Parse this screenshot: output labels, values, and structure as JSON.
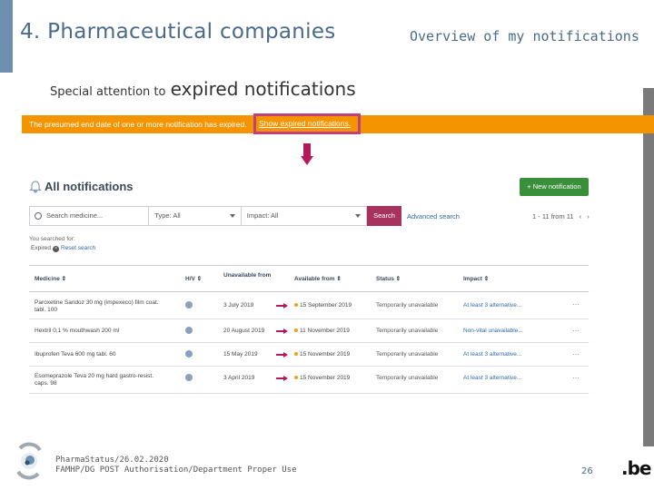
{
  "slide": {
    "title": "4. Pharmaceutical companies",
    "subtitle": "Overview of my notifications",
    "attention_small": "Special attention to",
    "attention_big": "expired notifications"
  },
  "banner": {
    "text": "The presumed end date of one or more notification has expired.",
    "link": "Show expired notifications."
  },
  "app": {
    "title": "All notifications",
    "new_button": "+ New notification",
    "search": {
      "medicine_placeholder": "Search medicine...",
      "type_label": "Type: All",
      "impact_label": "Impact: All",
      "button": "Search",
      "advanced": "Advanced search"
    },
    "pager": {
      "range": "1 - 11 from 11",
      "prev": "‹",
      "next": "›"
    },
    "searched_label": "You searched for:",
    "filter_chip": "Expired",
    "reset_search": "Reset search",
    "columns": {
      "medicine": "Medicine ⇕",
      "hv": "H/V ⇕",
      "unavailable_from": "Unavailable from",
      "available_from": "Available from ⇕",
      "status": "Status ⇕",
      "impact": "Impact ⇕"
    },
    "rows": [
      {
        "medicine_line1": "Paroxetine Sandoz 30 mg (impexeco) film coat.",
        "medicine_line2": "tabl. 100",
        "unavailable_from": "3 July 2019",
        "available_from": "15 September 2019",
        "status": "Temporarily unavailable",
        "impact": "At least 3 alternative..."
      },
      {
        "medicine_line1": "Hextril 0,1 % mouthwash 200 ml",
        "medicine_line2": "",
        "unavailable_from": "20 August 2019",
        "available_from": "11 November 2019",
        "status": "Temporarily unavailable",
        "impact": "Non-vital unavailable..."
      },
      {
        "medicine_line1": "Ibuprofen Teva 600 mg tabl. 60",
        "medicine_line2": "",
        "unavailable_from": "15 May 2019",
        "available_from": "15 November 2019",
        "status": "Temporarily unavailable",
        "impact": "At least 3 alternative..."
      },
      {
        "medicine_line1": "Esomeprazole Teva 20 mg hard gastro-resist.",
        "medicine_line2": "caps. 98",
        "unavailable_from": "3 April 2019",
        "available_from": "15 November 2019",
        "status": "Temporarily unavailable",
        "impact": "At least 3 alternative..."
      }
    ],
    "more": "···"
  },
  "footer": {
    "line1": "PharmaStatus/26.02.2020",
    "line2": "FAMHP/DG POST Authorisation/Department Proper Use",
    "page_number": "26",
    "be_logo": ".be"
  },
  "colors": {
    "banner": "#f39400",
    "highlight": "#c0407a",
    "search_button": "#a8325e",
    "new_button": "#3a8f3a",
    "available_dot": "#f0a020",
    "title": "#4a6a8a"
  }
}
